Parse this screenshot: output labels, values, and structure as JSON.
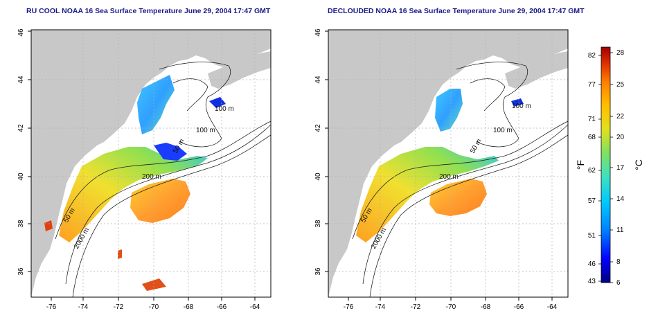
{
  "titles": {
    "left": "RU COOL NOAA 16 Sea Surface Temperature June 29, 2004 17:47 GMT",
    "right": "DECLOUDED NOAA 16 Sea Surface Temperature June 29, 2004 17:47 GMT"
  },
  "axes": {
    "x_ticks": [
      "-76",
      "-74",
      "-72",
      "-70",
      "-68",
      "-66",
      "-64"
    ],
    "y_ticks": [
      "36",
      "38",
      "40",
      "42",
      "44",
      "46"
    ]
  },
  "contour_labels": {
    "left": [
      "100 m",
      "100 m",
      "50 m",
      "200 m",
      "50 m",
      "2000 m"
    ],
    "right": [
      "100 m",
      "100 m",
      "50 m",
      "200 m",
      "50 m",
      "2000 m"
    ]
  },
  "colorbar": {
    "fahrenheit_label": "°F",
    "celsius_label": "°C",
    "fahrenheit_ticks": [
      "82",
      "77",
      "71",
      "68",
      "62",
      "57",
      "51",
      "46",
      "43"
    ],
    "celsius_ticks": [
      "28",
      "25",
      "22",
      "20",
      "17",
      "14",
      "11",
      "8",
      "6"
    ],
    "colors": [
      "#000080",
      "#0000ff",
      "#0080ff",
      "#00c8ff",
      "#40e0c0",
      "#80e060",
      "#e0e020",
      "#ffc000",
      "#ff8000",
      "#e03000",
      "#a00000"
    ]
  }
}
